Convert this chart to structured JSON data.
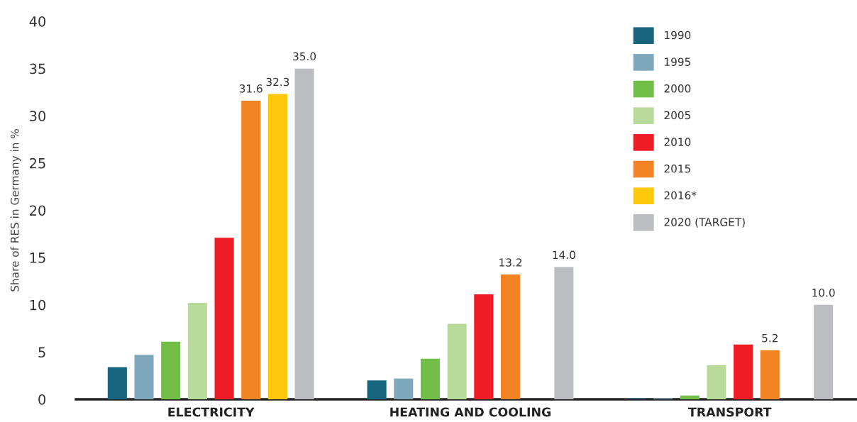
{
  "chart_data": {
    "type": "bar",
    "ylabel": "Share of RES in Germany in %",
    "categories": [
      "ELECTRICITY",
      "HEATING AND COOLING",
      "TRANSPORT"
    ],
    "series": [
      {
        "name": "1990",
        "color": "#17657e",
        "values": [
          3.4,
          2.0,
          0.1
        ]
      },
      {
        "name": "1995",
        "color": "#80a8bd",
        "values": [
          4.7,
          2.2,
          0.1
        ]
      },
      {
        "name": "2000",
        "color": "#72bf47",
        "values": [
          6.1,
          4.3,
          0.4
        ]
      },
      {
        "name": "2005",
        "color": "#b8db9c",
        "values": [
          10.2,
          8.0,
          3.6
        ]
      },
      {
        "name": "2010",
        "color": "#ed1c25",
        "values": [
          17.1,
          11.1,
          5.8
        ]
      },
      {
        "name": "2015",
        "color": "#f38423",
        "values": [
          31.6,
          13.2,
          5.2
        ],
        "value_labels": [
          "31.6",
          "13.2",
          "5.2"
        ]
      },
      {
        "name": "2016*",
        "color": "#fec90b",
        "values": [
          32.3,
          null,
          null
        ],
        "value_labels": [
          "32.3",
          null,
          null
        ]
      },
      {
        "name": "2020 (TARGET)",
        "color": "#bcbdc0",
        "values": [
          35.0,
          14.0,
          10.0
        ],
        "value_labels": [
          "35.0",
          "14.0",
          "10.0"
        ]
      }
    ],
    "ylim": [
      0,
      40
    ],
    "yticks": [
      0,
      5,
      10,
      15,
      20,
      25,
      30,
      35,
      40
    ],
    "grid": false,
    "legend": "top right"
  }
}
